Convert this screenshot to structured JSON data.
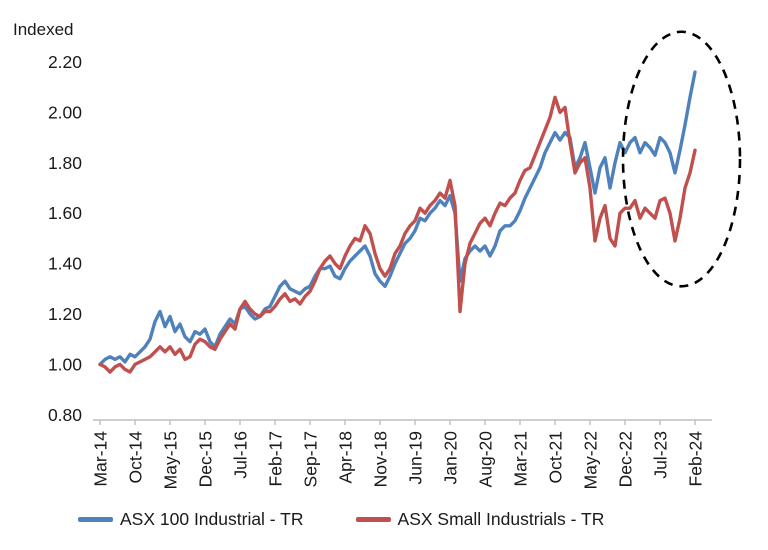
{
  "header": {
    "y_axis_title": "Indexed"
  },
  "colors": {
    "series1": "#4F81BD",
    "series2": "#C0504D",
    "axis": "#BFBFBF",
    "text": "#1a1a1a",
    "annotation": "#000000"
  },
  "chart_data": {
    "type": "line",
    "title": "",
    "ylabel": "Indexed",
    "xlabel": "",
    "ylim": [
      0.8,
      2.2
    ],
    "ytick_step": 0.2,
    "yticks": [
      "2.20",
      "2.00",
      "1.80",
      "1.60",
      "1.40",
      "1.20",
      "1.00",
      "0.80"
    ],
    "x_tick_labels": [
      "Mar-14",
      "Oct-14",
      "May-15",
      "Dec-15",
      "Jul-16",
      "Feb-17",
      "Sep-17",
      "Apr-18",
      "Nov-18",
      "Jun-19",
      "Jan-20",
      "Aug-20",
      "Mar-21",
      "Oct-21",
      "May-22",
      "Dec-22",
      "Jul-23",
      "Feb-24"
    ],
    "x_tick_every_months": 7,
    "x_range_months": 120,
    "grid": false,
    "legend_position": "bottom",
    "series": [
      {
        "name": "ASX 100 Industrial - TR",
        "color": "#4F81BD",
        "values": [
          1.0,
          1.02,
          1.03,
          1.02,
          1.03,
          1.01,
          1.04,
          1.03,
          1.05,
          1.07,
          1.1,
          1.17,
          1.21,
          1.15,
          1.19,
          1.13,
          1.16,
          1.11,
          1.09,
          1.13,
          1.12,
          1.14,
          1.09,
          1.07,
          1.12,
          1.15,
          1.18,
          1.16,
          1.22,
          1.23,
          1.2,
          1.18,
          1.19,
          1.22,
          1.23,
          1.27,
          1.31,
          1.33,
          1.3,
          1.29,
          1.28,
          1.3,
          1.31,
          1.35,
          1.38,
          1.38,
          1.39,
          1.35,
          1.34,
          1.38,
          1.41,
          1.43,
          1.45,
          1.47,
          1.43,
          1.36,
          1.33,
          1.31,
          1.35,
          1.4,
          1.44,
          1.48,
          1.5,
          1.53,
          1.58,
          1.57,
          1.6,
          1.62,
          1.65,
          1.63,
          1.67,
          1.6,
          1.33,
          1.42,
          1.45,
          1.47,
          1.45,
          1.47,
          1.43,
          1.47,
          1.53,
          1.55,
          1.55,
          1.57,
          1.61,
          1.66,
          1.7,
          1.74,
          1.78,
          1.84,
          1.88,
          1.92,
          1.89,
          1.92,
          1.9,
          1.78,
          1.82,
          1.88,
          1.78,
          1.68,
          1.78,
          1.82,
          1.7,
          1.8,
          1.88,
          1.84,
          1.88,
          1.9,
          1.84,
          1.88,
          1.86,
          1.83,
          1.9,
          1.88,
          1.84,
          1.76,
          1.85,
          1.95,
          2.06,
          2.16
        ]
      },
      {
        "name": "ASX Small Industrials - TR",
        "color": "#C0504D",
        "values": [
          1.0,
          0.99,
          0.97,
          0.99,
          1.0,
          0.98,
          0.97,
          1.0,
          1.01,
          1.02,
          1.03,
          1.05,
          1.07,
          1.05,
          1.07,
          1.04,
          1.06,
          1.02,
          1.03,
          1.08,
          1.1,
          1.09,
          1.07,
          1.06,
          1.1,
          1.13,
          1.16,
          1.14,
          1.22,
          1.25,
          1.22,
          1.2,
          1.19,
          1.21,
          1.21,
          1.23,
          1.26,
          1.28,
          1.25,
          1.26,
          1.24,
          1.27,
          1.29,
          1.33,
          1.38,
          1.41,
          1.43,
          1.4,
          1.38,
          1.43,
          1.47,
          1.5,
          1.49,
          1.55,
          1.52,
          1.44,
          1.38,
          1.35,
          1.38,
          1.44,
          1.47,
          1.52,
          1.55,
          1.57,
          1.62,
          1.6,
          1.63,
          1.65,
          1.68,
          1.66,
          1.73,
          1.63,
          1.21,
          1.4,
          1.48,
          1.52,
          1.56,
          1.58,
          1.55,
          1.6,
          1.64,
          1.63,
          1.66,
          1.68,
          1.73,
          1.77,
          1.78,
          1.83,
          1.88,
          1.93,
          1.98,
          2.06,
          2.0,
          2.02,
          1.88,
          1.76,
          1.8,
          1.82,
          1.7,
          1.49,
          1.58,
          1.63,
          1.5,
          1.47,
          1.6,
          1.62,
          1.62,
          1.65,
          1.58,
          1.62,
          1.6,
          1.58,
          1.65,
          1.66,
          1.6,
          1.49,
          1.58,
          1.7,
          1.76,
          1.85
        ]
      }
    ],
    "annotation": {
      "shape": "dashed-ellipse",
      "meaning": "highlights recent divergence and rally (late 2022 to Feb-24)",
      "center_month_index": 116.3,
      "center_value": 1.815,
      "radius_months": 11.7,
      "radius_value": 0.505
    }
  },
  "legend": {
    "items": [
      {
        "label": "ASX 100 Industrial - TR",
        "color": "#4F81BD"
      },
      {
        "label": "ASX Small Industrials - TR",
        "color": "#C0504D"
      }
    ]
  }
}
